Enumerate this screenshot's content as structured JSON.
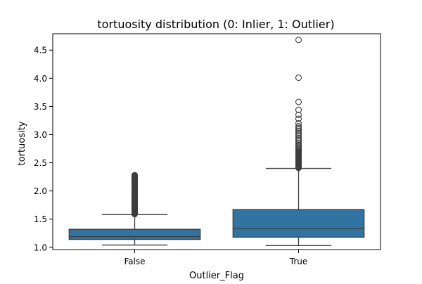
{
  "chart_data": {
    "type": "box",
    "title": "tortuosity distribution (0: Inlier, 1: Outlier)",
    "xlabel": "Outlier_Flag",
    "ylabel": "tortuosity",
    "ylim": [
      0.96,
      4.79
    ],
    "yticks": [
      1.0,
      1.5,
      2.0,
      2.5,
      3.0,
      3.5,
      4.0,
      4.5
    ],
    "ytick_labels": [
      "1.0",
      "1.5",
      "2.0",
      "2.5",
      "3.0",
      "3.5",
      "4.0",
      "4.5"
    ],
    "categories": [
      "False",
      "True"
    ],
    "grid": false,
    "legend": "none",
    "box_color": "#3274a1",
    "line_color": "#3d3d3d",
    "boxes": [
      {
        "category": "False",
        "whisker_low": 1.04,
        "q1": 1.14,
        "median": 1.19,
        "q3": 1.32,
        "whisker_high": 1.58,
        "outliers": [
          1.59,
          1.6,
          1.61,
          1.62,
          1.63,
          1.64,
          1.65,
          1.66,
          1.67,
          1.68,
          1.69,
          1.7,
          1.71,
          1.72,
          1.73,
          1.74,
          1.75,
          1.76,
          1.77,
          1.78,
          1.79,
          1.8,
          1.81,
          1.82,
          1.83,
          1.84,
          1.85,
          1.86,
          1.87,
          1.88,
          1.89,
          1.9,
          1.91,
          1.92,
          1.93,
          1.94,
          1.95,
          1.96,
          1.97,
          1.98,
          1.99,
          2.0,
          2.01,
          2.02,
          2.03,
          2.04,
          2.05,
          2.06,
          2.07,
          2.08,
          2.09,
          2.1,
          2.11,
          2.12,
          2.13,
          2.14,
          2.15,
          2.16,
          2.17,
          2.18,
          2.19,
          2.2,
          2.21,
          2.22,
          2.23,
          2.24,
          2.25,
          2.26,
          2.27,
          2.28
        ]
      },
      {
        "category": "True",
        "whisker_low": 1.03,
        "q1": 1.18,
        "median": 1.33,
        "q3": 1.67,
        "whisker_high": 2.4,
        "outliers": [
          2.41,
          2.42,
          2.43,
          2.44,
          2.45,
          2.46,
          2.47,
          2.48,
          2.49,
          2.5,
          2.51,
          2.52,
          2.53,
          2.54,
          2.55,
          2.56,
          2.57,
          2.58,
          2.59,
          2.6,
          2.61,
          2.62,
          2.63,
          2.64,
          2.65,
          2.66,
          2.67,
          2.68,
          2.69,
          2.7,
          2.72,
          2.74,
          2.76,
          2.78,
          2.8,
          2.82,
          2.85,
          2.88,
          2.91,
          2.94,
          2.97,
          3.0,
          3.03,
          3.06,
          3.09,
          3.12,
          3.15,
          3.2,
          3.28,
          3.35,
          3.44,
          3.58,
          4.01,
          4.68
        ]
      }
    ]
  }
}
